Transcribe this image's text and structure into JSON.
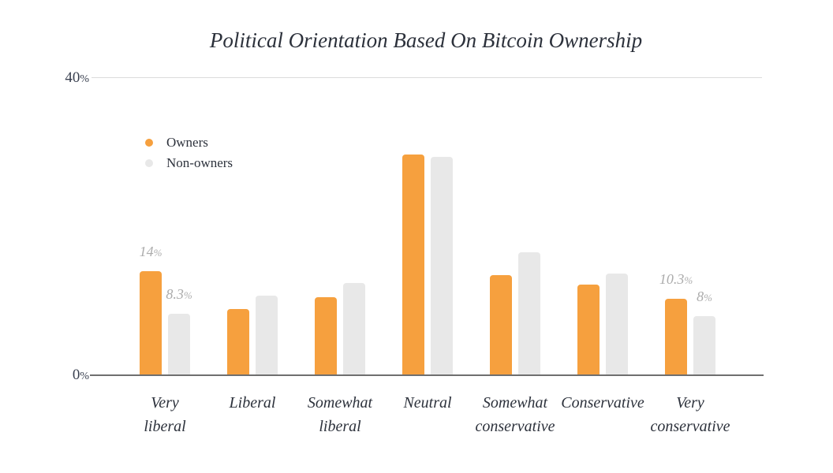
{
  "chart_data": {
    "type": "bar",
    "title": "Political Orientation Based On Bitcoin Ownership",
    "categories": [
      "Very liberal",
      "Liberal",
      "Somewhat liberal",
      "Neutral",
      "Somewhat conservative",
      "Conservative",
      "Very conservative"
    ],
    "category_lines": [
      [
        "Very",
        "liberal"
      ],
      [
        "Liberal"
      ],
      [
        "Somewhat",
        "liberal"
      ],
      [
        "Neutral"
      ],
      [
        "Somewhat",
        "conservative"
      ],
      [
        "Conservative"
      ],
      [
        "Very",
        "conservative"
      ]
    ],
    "series": [
      {
        "name": "Owners",
        "color": "#F6A03E",
        "values": [
          14,
          8.9,
          10.5,
          29.7,
          13.5,
          12.2,
          10.3
        ]
      },
      {
        "name": "Non-owners",
        "color": "#E8E8E8",
        "values": [
          8.3,
          10.7,
          12.4,
          29.4,
          16.5,
          13.7,
          8
        ]
      }
    ],
    "data_labels": [
      {
        "category_index": 0,
        "series_index": 0,
        "value": "14",
        "suffix": "%"
      },
      {
        "category_index": 0,
        "series_index": 1,
        "value": "8.3",
        "suffix": "%"
      },
      {
        "category_index": 6,
        "series_index": 0,
        "value": "10.3",
        "suffix": "%"
      },
      {
        "category_index": 6,
        "series_index": 1,
        "value": "8",
        "suffix": "%"
      }
    ],
    "y_ticks": [
      {
        "value": "40",
        "suffix": "%"
      },
      {
        "value": "0",
        "suffix": "%"
      }
    ],
    "ylim": [
      0,
      40
    ],
    "grid": "top gridline only",
    "legend_position": "inside-top-left"
  },
  "legend": {
    "items": [
      {
        "label": "Owners",
        "color": "#F6A03E"
      },
      {
        "label": "Non-owners",
        "color": "#E8E8E8"
      }
    ]
  }
}
